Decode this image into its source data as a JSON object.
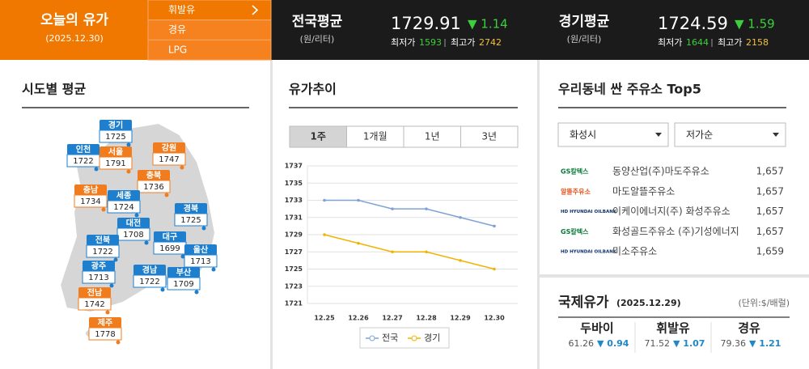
{
  "header": {
    "title": "오늘의 유가",
    "date": "(2025.12.30)",
    "tabs": [
      "휘발유",
      "경유",
      "LPG"
    ]
  },
  "summary": [
    {
      "name": "전국평균",
      "unit": "(원/리터)",
      "price": "1729.91",
      "change": "▼ 1.14",
      "min_label": "최저가",
      "min": "1593",
      "max_label": "최고가",
      "max": "2742"
    },
    {
      "name": "경기평균",
      "unit": "(원/리터)",
      "price": "1724.59",
      "change": "▼ 1.59",
      "min_label": "최저가",
      "min": "1644",
      "max_label": "최고가",
      "max": "2158"
    }
  ],
  "sido": {
    "title": "시도별 평균",
    "regions": [
      {
        "name": "경기",
        "price": "1725",
        "color": "#1d7fce"
      },
      {
        "name": "인천",
        "price": "1722",
        "color": "#1d7fce"
      },
      {
        "name": "서울",
        "price": "1791",
        "color": "#f07c1e"
      },
      {
        "name": "강원",
        "price": "1747",
        "color": "#f07c1e"
      },
      {
        "name": "충북",
        "price": "1736",
        "color": "#f07c1e"
      },
      {
        "name": "충남",
        "price": "1734",
        "color": "#f07c1e"
      },
      {
        "name": "세종",
        "price": "1724",
        "color": "#1d7fce"
      },
      {
        "name": "대전",
        "price": "1708",
        "color": "#1d7fce"
      },
      {
        "name": "경북",
        "price": "1725",
        "color": "#1d7fce"
      },
      {
        "name": "대구",
        "price": "1699",
        "color": "#1d7fce"
      },
      {
        "name": "울산",
        "price": "1713",
        "color": "#1d7fce"
      },
      {
        "name": "전북",
        "price": "1722",
        "color": "#1d7fce"
      },
      {
        "name": "광주",
        "price": "1713",
        "color": "#1d7fce"
      },
      {
        "name": "경남",
        "price": "1722",
        "color": "#1d7fce"
      },
      {
        "name": "부산",
        "price": "1709",
        "color": "#1d7fce"
      },
      {
        "name": "전남",
        "price": "1742",
        "color": "#f07c1e"
      },
      {
        "name": "제주",
        "price": "1778",
        "color": "#f07c1e"
      }
    ]
  },
  "trend": {
    "title": "유가추이",
    "tabs": [
      "1주",
      "1개월",
      "1년",
      "3년"
    ]
  },
  "chart_data": {
    "type": "line",
    "categories": [
      "12.25",
      "12.26",
      "12.27",
      "12.28",
      "12.29",
      "12.30"
    ],
    "series": [
      {
        "name": "전국",
        "color": "#7ea2d6",
        "values": [
          1733,
          1733,
          1732,
          1732,
          1731,
          1730
        ]
      },
      {
        "name": "경기",
        "color": "#f0b400",
        "values": [
          1729,
          1728,
          1727,
          1727,
          1726,
          1725
        ]
      }
    ],
    "ylim": [
      1721,
      1737
    ],
    "yticks": [
      1721,
      1723,
      1725,
      1727,
      1729,
      1731,
      1733,
      1735,
      1737
    ],
    "grid": true,
    "legend": "bottom"
  },
  "top5": {
    "title": "우리동네 싼 주유소 Top5",
    "region": "화성시",
    "sort": "저가순",
    "stations": [
      {
        "brand": "GS칼텍스",
        "name": "동양산업(주)마도주유소",
        "price": "1,657"
      },
      {
        "brand": "알뜰주유소",
        "name": "마도알뜰주유소",
        "price": "1,657"
      },
      {
        "brand": "HD HYUNDAI OILBANK",
        "name": "이케이에너지(주) 화성주유소",
        "price": "1,657"
      },
      {
        "brand": "GS칼텍스",
        "name": "화성골드주유소 (주)기성에너지",
        "price": "1,657"
      },
      {
        "brand": "HD HYUNDAI OILBANK",
        "name": "미소주유소",
        "price": "1,659"
      }
    ]
  },
  "intl": {
    "title": "국제유가",
    "date": "(2025.12.29)",
    "unit": "(단위:$/배럴)",
    "items": [
      {
        "name": "두바이",
        "price": "61.26",
        "change": "▼ 0.94"
      },
      {
        "name": "휘발유",
        "price": "71.52",
        "change": "▼ 1.07"
      },
      {
        "name": "경유",
        "price": "79.36",
        "change": "▼ 1.21"
      }
    ]
  }
}
